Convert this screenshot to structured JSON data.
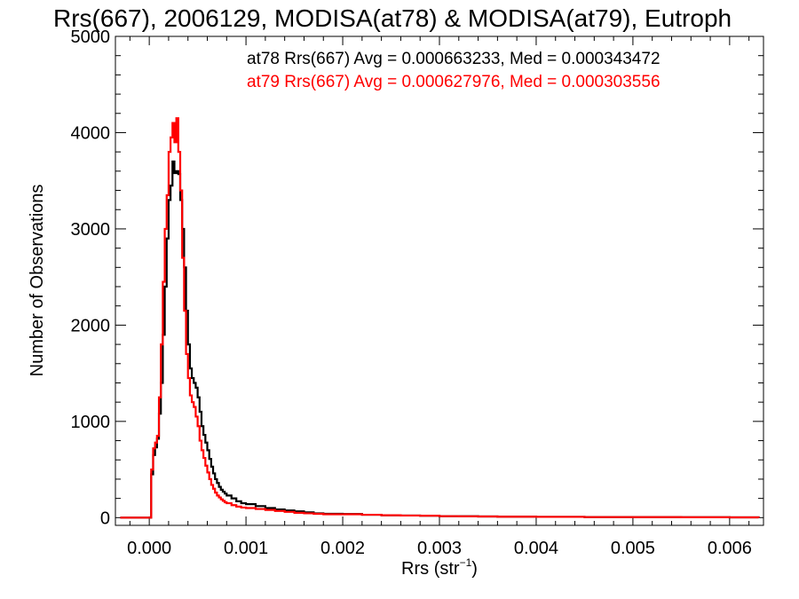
{
  "chart_data": {
    "type": "line",
    "title": "Rrs(667), 2006129, MODISA(at78) & MODISA(at79), Eutroph",
    "xlabel": "Rrs (str",
    "xlabel_sup": "−1",
    "xlabel_end": ")",
    "ylabel": "Number of Observations",
    "xlim": [
      -0.00035,
      0.00635
    ],
    "ylim": [
      -80,
      5000
    ],
    "x_ticks": [
      0.0,
      0.001,
      0.002,
      0.003,
      0.004,
      0.005,
      0.006
    ],
    "x_tick_labels": [
      "0.000",
      "0.001",
      "0.002",
      "0.003",
      "0.004",
      "0.005",
      "0.006"
    ],
    "y_ticks": [
      0,
      1000,
      2000,
      3000,
      4000,
      5000
    ],
    "y_tick_labels": [
      "0",
      "1000",
      "2000",
      "3000",
      "4000",
      "5000"
    ],
    "grid": false,
    "legend_position": "top-right",
    "series": [
      {
        "name": "at78",
        "color": "#000000",
        "legend_text": "at78 Rrs(667) Avg = 0.000663233, Med = 0.000343472",
        "x": [
          -0.0003,
          -5e-05,
          -2e-05,
          0.0,
          2e-05,
          4e-05,
          6e-05,
          8e-05,
          0.0001,
          0.00012,
          0.00014,
          0.00016,
          0.00018,
          0.0002,
          0.00022,
          0.00024,
          0.00026,
          0.00028,
          0.0003,
          0.00032,
          0.00034,
          0.00036,
          0.00038,
          0.0004,
          0.00042,
          0.00044,
          0.00046,
          0.00048,
          0.0005,
          0.00052,
          0.00054,
          0.00056,
          0.00058,
          0.0006,
          0.00062,
          0.00064,
          0.00066,
          0.00068,
          0.0007,
          0.00072,
          0.00074,
          0.00076,
          0.00078,
          0.0008,
          0.00085,
          0.0009,
          0.00095,
          0.001,
          0.0011,
          0.0012,
          0.0013,
          0.0014,
          0.0015,
          0.0016,
          0.0017,
          0.0018,
          0.0019,
          0.002,
          0.0022,
          0.0024,
          0.0026,
          0.0028,
          0.003,
          0.0032,
          0.0034,
          0.0036,
          0.0038,
          0.004,
          0.0045,
          0.005,
          0.0055,
          0.006,
          0.0063
        ],
        "y": [
          0,
          0,
          0,
          0,
          450,
          650,
          730,
          820,
          1080,
          1400,
          1900,
          2400,
          2900,
          3300,
          3450,
          3700,
          3580,
          3600,
          3570,
          3300,
          3000,
          2600,
          2150,
          1800,
          1550,
          1450,
          1400,
          1350,
          1250,
          1100,
          950,
          860,
          780,
          700,
          610,
          530,
          460,
          400,
          360,
          320,
          290,
          270,
          250,
          230,
          200,
          170,
          150,
          140,
          120,
          100,
          85,
          75,
          65,
          55,
          45,
          40,
          40,
          38,
          30,
          25,
          22,
          20,
          15,
          15,
          12,
          10,
          10,
          8,
          6,
          5,
          4,
          3,
          0
        ]
      },
      {
        "name": "at79",
        "color": "#ff0000",
        "legend_text": "at79 Rrs(667) Avg = 0.000627976, Med = 0.000303556",
        "x": [
          -0.0003,
          -5e-05,
          -2e-05,
          0.0,
          2e-05,
          4e-05,
          6e-05,
          8e-05,
          0.0001,
          0.00012,
          0.00014,
          0.00016,
          0.00018,
          0.0002,
          0.00022,
          0.00024,
          0.00026,
          0.00028,
          0.0003,
          0.00032,
          0.00034,
          0.00036,
          0.00038,
          0.0004,
          0.00042,
          0.00044,
          0.00046,
          0.00048,
          0.0005,
          0.00052,
          0.00054,
          0.00056,
          0.00058,
          0.0006,
          0.00062,
          0.00064,
          0.00066,
          0.00068,
          0.0007,
          0.00072,
          0.00074,
          0.00076,
          0.00078,
          0.0008,
          0.00085,
          0.0009,
          0.00095,
          0.001,
          0.0011,
          0.0012,
          0.0013,
          0.0014,
          0.0015,
          0.0016,
          0.0017,
          0.0018,
          0.0019,
          0.002,
          0.0022,
          0.0024,
          0.0026,
          0.0028,
          0.003,
          0.0032,
          0.0034,
          0.0036,
          0.0038,
          0.004,
          0.0045,
          0.005,
          0.0055,
          0.006,
          0.0063
        ],
        "y": [
          0,
          0,
          0,
          0,
          500,
          720,
          780,
          850,
          1250,
          1800,
          2450,
          3000,
          3350,
          3800,
          3950,
          4100,
          3900,
          4150,
          3800,
          3400,
          2700,
          2150,
          1700,
          1450,
          1270,
          1200,
          1150,
          1050,
          950,
          800,
          700,
          620,
          540,
          470,
          400,
          340,
          300,
          260,
          230,
          210,
          190,
          175,
          160,
          150,
          130,
          115,
          105,
          100,
          90,
          80,
          70,
          60,
          50,
          45,
          40,
          35,
          35,
          35,
          30,
          25,
          22,
          20,
          15,
          14,
          12,
          10,
          10,
          8,
          6,
          5,
          4,
          3,
          0
        ]
      }
    ]
  }
}
